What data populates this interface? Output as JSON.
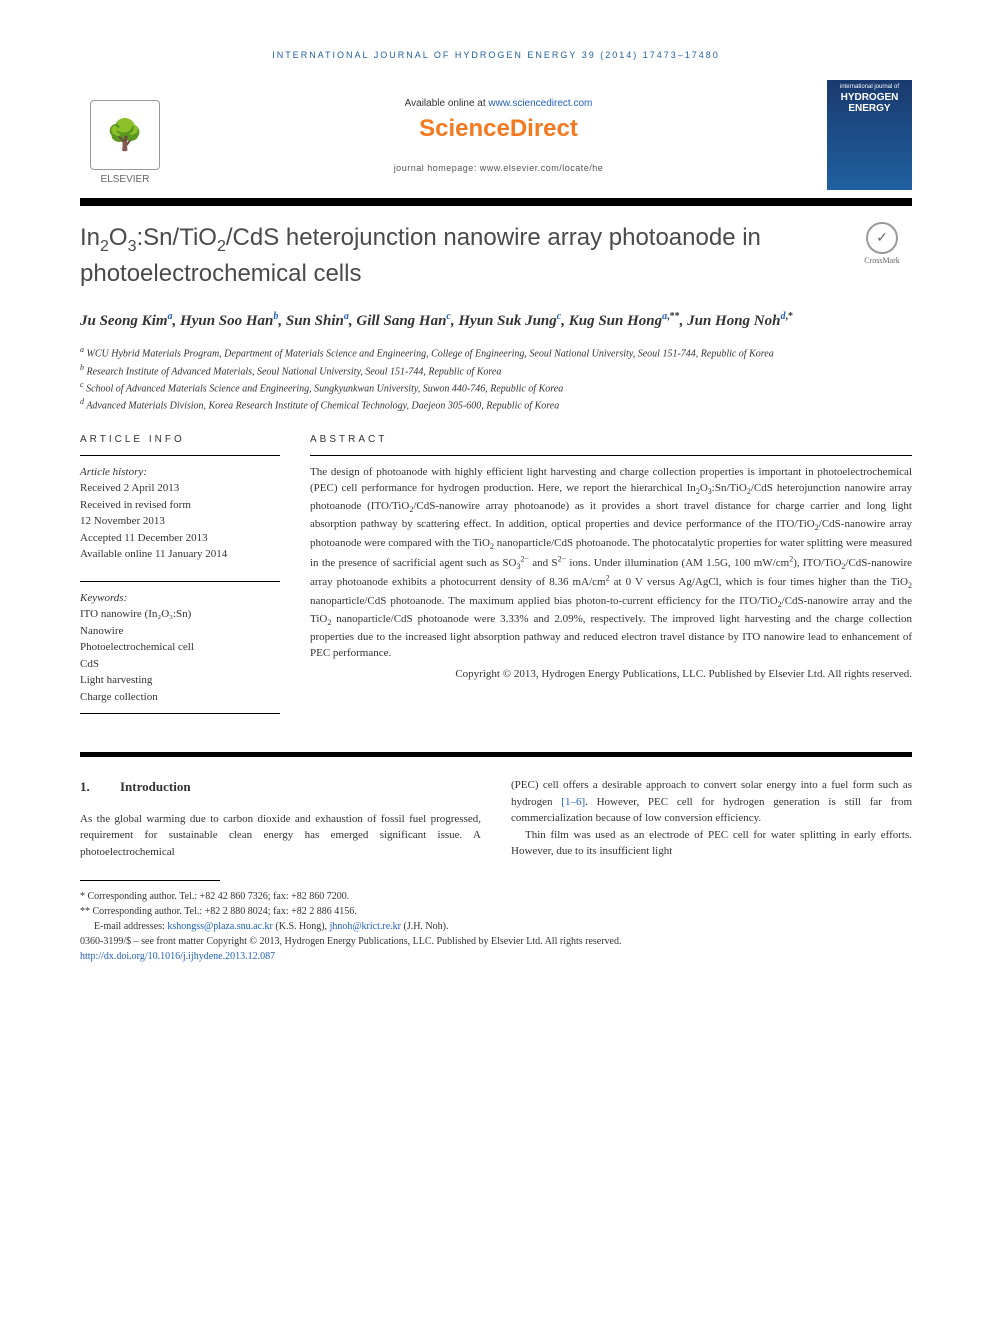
{
  "running_header": "INTERNATIONAL JOURNAL OF HYDROGEN ENERGY 39 (2014) 17473–17480",
  "top": {
    "elsevier_label": "ELSEVIER",
    "available_online_prefix": "Available online at ",
    "available_online_link": "www.sciencedirect.com",
    "sciencedirect": "ScienceDirect",
    "homepage_label": "journal homepage: www.elsevier.com/locate/he",
    "cover_small": "international journal of",
    "cover_main": "HYDROGEN ENERGY"
  },
  "title_html": "In<sub>2</sub>O<sub>3</sub>:Sn/TiO<sub>2</sub>/CdS heterojunction nanowire array photoanode in photoelectrochemical cells",
  "crossmark_label": "CrossMark",
  "authors_html": "Ju Seong Kim<sup><a href=\"#\">a</a></sup>, Hyun Soo Han<sup><a href=\"#\">b</a></sup>, Sun Shin<sup><a href=\"#\">a</a></sup>, Gill Sang Han<sup><a href=\"#\">c</a></sup>, Hyun Suk Jung<sup><a href=\"#\">c</a></sup>, Kug Sun Hong<sup><a href=\"#\">a</a>,**</sup>, Jun Hong Noh<sup><a href=\"#\">d</a>,*</sup>",
  "affiliations": [
    {
      "sup": "a",
      "text": "WCU Hybrid Materials Program, Department of Materials Science and Engineering, College of Engineering, Seoul National University, Seoul 151-744, Republic of Korea"
    },
    {
      "sup": "b",
      "text": "Research Institute of Advanced Materials, Seoul National University, Seoul 151-744, Republic of Korea"
    },
    {
      "sup": "c",
      "text": "School of Advanced Materials Science and Engineering, Sungkyunkwan University, Suwon 440-746, Republic of Korea"
    },
    {
      "sup": "d",
      "text": "Advanced Materials Division, Korea Research Institute of Chemical Technology, Daejeon 305-600, Republic of Korea"
    }
  ],
  "article_info": {
    "label": "ARTICLE INFO",
    "history_label": "Article history:",
    "history": [
      "Received 2 April 2013",
      "Received in revised form",
      "12 November 2013",
      "Accepted 11 December 2013",
      "Available online 11 January 2014"
    ],
    "keywords_label": "Keywords:",
    "keywords": [
      "ITO nanowire (In₂O₃:Sn)",
      "Nanowire",
      "Photoelectrochemical cell",
      "CdS",
      "Light harvesting",
      "Charge collection"
    ]
  },
  "abstract": {
    "label": "ABSTRACT",
    "text_html": "The design of photoanode with highly efficient light harvesting and charge collection properties is important in photoelectrochemical (PEC) cell performance for hydrogen production. Here, we report the hierarchical In<sub>2</sub>O<sub>3</sub>:Sn/TiO<sub>2</sub>/CdS heterojunction nanowire array photoanode (ITO/TiO<sub>2</sub>/CdS-nanowire array photoanode) as it provides a short travel distance for charge carrier and long light absorption pathway by scattering effect. In addition, optical properties and device performance of the ITO/TiO<sub>2</sub>/CdS-nanowire array photoanode were compared with the TiO<sub>2</sub> nanoparticle/CdS photoanode. The photocatalytic properties for water splitting were measured in the presence of sacrificial agent such as SO<sub>3</sub><sup>2−</sup> and S<sup>2−</sup> ions. Under illumination (AM 1.5G, 100 mW/cm<sup>2</sup>), ITO/TiO<sub>2</sub>/CdS-nanowire array photoanode exhibits a photocurrent density of 8.36 mA/cm<sup>2</sup> at 0 V versus Ag/AgCl, which is four times higher than the TiO<sub>2</sub> nanoparticle/CdS photoanode. The maximum applied bias photon-to-current efficiency for the ITO/TiO<sub>2</sub>/CdS-nanowire array and the TiO<sub>2</sub> nanoparticle/CdS photoanode were 3.33% and 2.09%, respectively. The improved light harvesting and the charge collection properties due to the increased light absorption pathway and reduced electron travel distance by ITO nanowire lead to enhancement of PEC performance.",
    "copyright": "Copyright © 2013, Hydrogen Energy Publications, LLC. Published by Elsevier Ltd. All rights reserved."
  },
  "intro": {
    "num": "1.",
    "heading": "Introduction",
    "col1": "As the global warming due to carbon dioxide and exhaustion of fossil fuel progressed, requirement for sustainable clean energy has emerged significant issue. A photoelectrochemical",
    "col2_html": "(PEC) cell offers a desirable approach to convert solar energy into a fuel form such as hydrogen <a href=\"#\">[1–6]</a>. However, PEC cell for hydrogen generation is still far from commercialization because of low conversion efficiency.",
    "col2_p2": "Thin film was used as an electrode of PEC cell for water splitting in early efforts. However, due to its insufficient light"
  },
  "footer": {
    "corr1": "* Corresponding author. Tel.: +82 42 860 7326; fax: +82 860 7200.",
    "corr2": "** Corresponding author. Tel.: +82 2 880 8024; fax: +82 2 886 4156.",
    "email_label": "E-mail addresses: ",
    "email1": "kshongss@plaza.snu.ac.kr",
    "email1_name": " (K.S. Hong), ",
    "email2": "jhnoh@krict.re.kr",
    "email2_name": " (J.H. Noh).",
    "issn": "0360-3199/$ – see front matter Copyright © 2013, Hydrogen Energy Publications, LLC. Published by Elsevier Ltd. All rights reserved.",
    "doi": "http://dx.doi.org/10.1016/j.ijhydene.2013.12.087"
  },
  "colors": {
    "link": "#2060c0",
    "orange": "#f47920",
    "header_blue": "#2060a0"
  }
}
